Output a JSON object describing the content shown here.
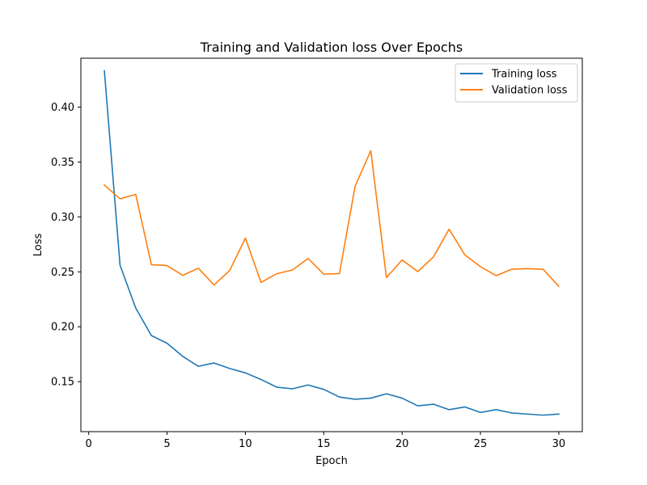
{
  "chart_data": {
    "type": "line",
    "title": "Training and Validation loss Over Epochs",
    "xlabel": "Epoch",
    "ylabel": "Loss",
    "xlim": [
      -0.5,
      31.5
    ],
    "ylim": [
      0.1045,
      0.4445
    ],
    "xticks": [
      0,
      5,
      10,
      15,
      20,
      25,
      30
    ],
    "yticks": [
      0.15,
      0.2,
      0.25,
      0.3,
      0.35,
      0.4
    ],
    "ytick_labels": [
      "0.15",
      "0.20",
      "0.25",
      "0.30",
      "0.35",
      "0.40"
    ],
    "grid": false,
    "legend": "top-right",
    "x": [
      1,
      2,
      3,
      4,
      5,
      6,
      7,
      8,
      9,
      10,
      11,
      12,
      13,
      14,
      15,
      16,
      17,
      18,
      19,
      20,
      21,
      22,
      23,
      24,
      25,
      26,
      27,
      28,
      29,
      30
    ],
    "series": [
      {
        "name": "Training loss",
        "color": "#1f77b4",
        "values": [
          0.433,
          0.256,
          0.217,
          0.192,
          0.185,
          0.173,
          0.164,
          0.167,
          0.162,
          0.158,
          0.152,
          0.145,
          0.1435,
          0.147,
          0.143,
          0.136,
          0.134,
          0.135,
          0.139,
          0.135,
          0.128,
          0.1295,
          0.1245,
          0.127,
          0.122,
          0.1245,
          0.1215,
          0.1205,
          0.1195,
          0.1205
        ]
      },
      {
        "name": "Validation loss",
        "color": "#ff7f0e",
        "values": [
          0.329,
          0.3165,
          0.3205,
          0.2565,
          0.2557,
          0.2468,
          0.2533,
          0.238,
          0.2513,
          0.2807,
          0.2403,
          0.2483,
          0.2517,
          0.2622,
          0.2479,
          0.2484,
          0.3278,
          0.3603,
          0.2448,
          0.2608,
          0.2502,
          0.2636,
          0.2888,
          0.2655,
          0.2548,
          0.2465,
          0.2524,
          0.2529,
          0.2523,
          0.2368
        ]
      }
    ]
  }
}
